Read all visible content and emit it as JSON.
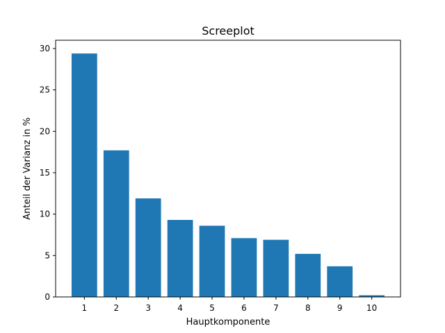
{
  "chart_data": {
    "type": "bar",
    "title": "Screeplot",
    "xlabel": "Hauptkomponente",
    "ylabel": "Anteil der Varianz in %",
    "categories": [
      "1",
      "2",
      "3",
      "4",
      "5",
      "6",
      "7",
      "8",
      "9",
      "10"
    ],
    "values": [
      29.4,
      17.7,
      11.9,
      9.3,
      8.6,
      7.1,
      6.9,
      5.2,
      3.7,
      0.2
    ],
    "ylim": [
      0,
      31
    ],
    "yticks": [
      0,
      5,
      10,
      15,
      20,
      25,
      30
    ],
    "bar_color": "#1f77b4",
    "grid": false,
    "legend": "none"
  }
}
